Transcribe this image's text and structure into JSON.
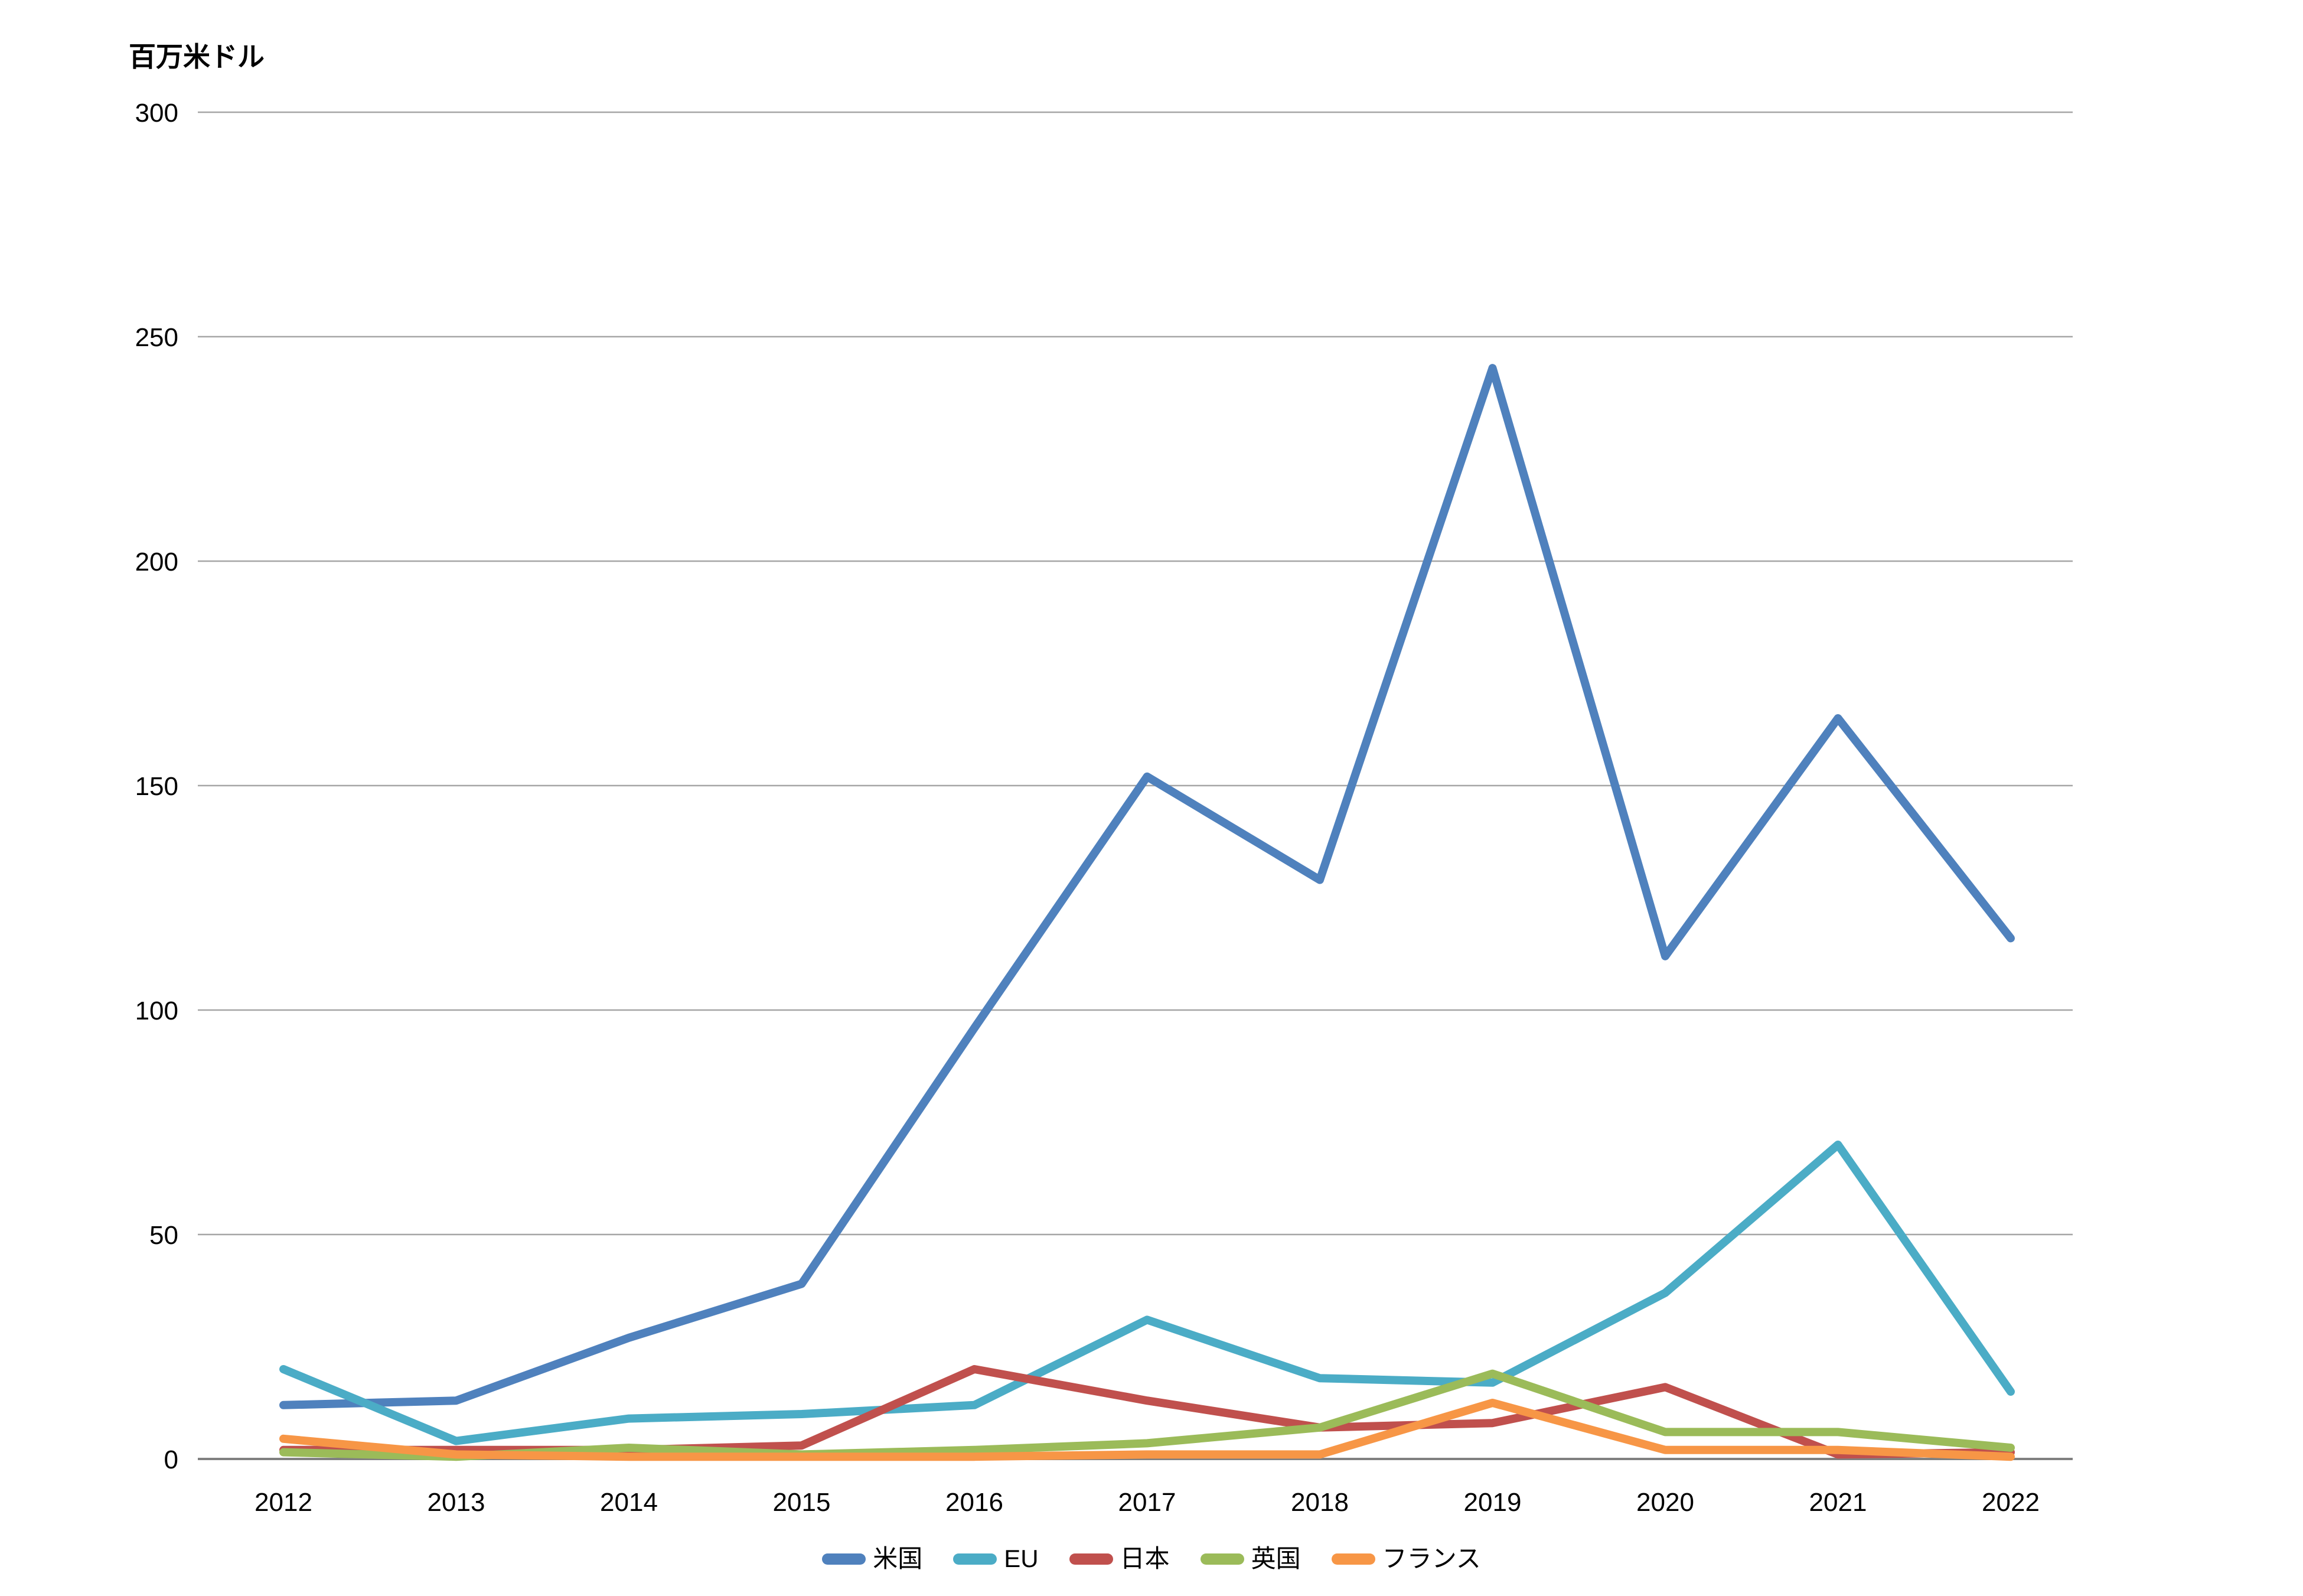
{
  "title": "百万米ドル",
  "chart_data": {
    "type": "line",
    "x": [
      2012,
      2013,
      2014,
      2015,
      2016,
      2017,
      2018,
      2019,
      2020,
      2021,
      2022
    ],
    "series": [
      {
        "name": "米国",
        "key": "us",
        "color": "#4F81BD",
        "values": [
          12,
          13,
          27,
          39,
          96,
          152,
          129,
          243,
          112,
          165,
          116
        ]
      },
      {
        "name": "EU",
        "key": "eu",
        "color": "#4BACC6",
        "values": [
          20,
          4,
          9,
          10,
          12,
          31,
          18,
          17,
          37,
          70,
          15
        ]
      },
      {
        "name": "日本",
        "key": "japan",
        "color": "#C0504D",
        "values": [
          2,
          2,
          2,
          3,
          20,
          13,
          7,
          8,
          16,
          1,
          1.5
        ]
      },
      {
        "name": "英国",
        "key": "uk",
        "color": "#9BBB59",
        "values": [
          1.5,
          0.5,
          2.5,
          1,
          2,
          3.5,
          7,
          19,
          6,
          6,
          2.5
        ]
      },
      {
        "name": "フランス",
        "key": "france",
        "color": "#F79646",
        "values": [
          4.5,
          1,
          0.5,
          0.5,
          0.5,
          1,
          1,
          12.5,
          2,
          2,
          0.5
        ]
      }
    ],
    "ylabel": "百万米ドル",
    "ylim": [
      0,
      300
    ],
    "ytick_step": 50,
    "yticks": [
      0,
      50,
      100,
      150,
      200,
      250,
      300
    ],
    "grid": true,
    "legend_position": "bottom",
    "grid_color": "#A6A6A6",
    "axis_color": "#808080",
    "text_color": "#000000",
    "background": "#FFFFFF"
  }
}
